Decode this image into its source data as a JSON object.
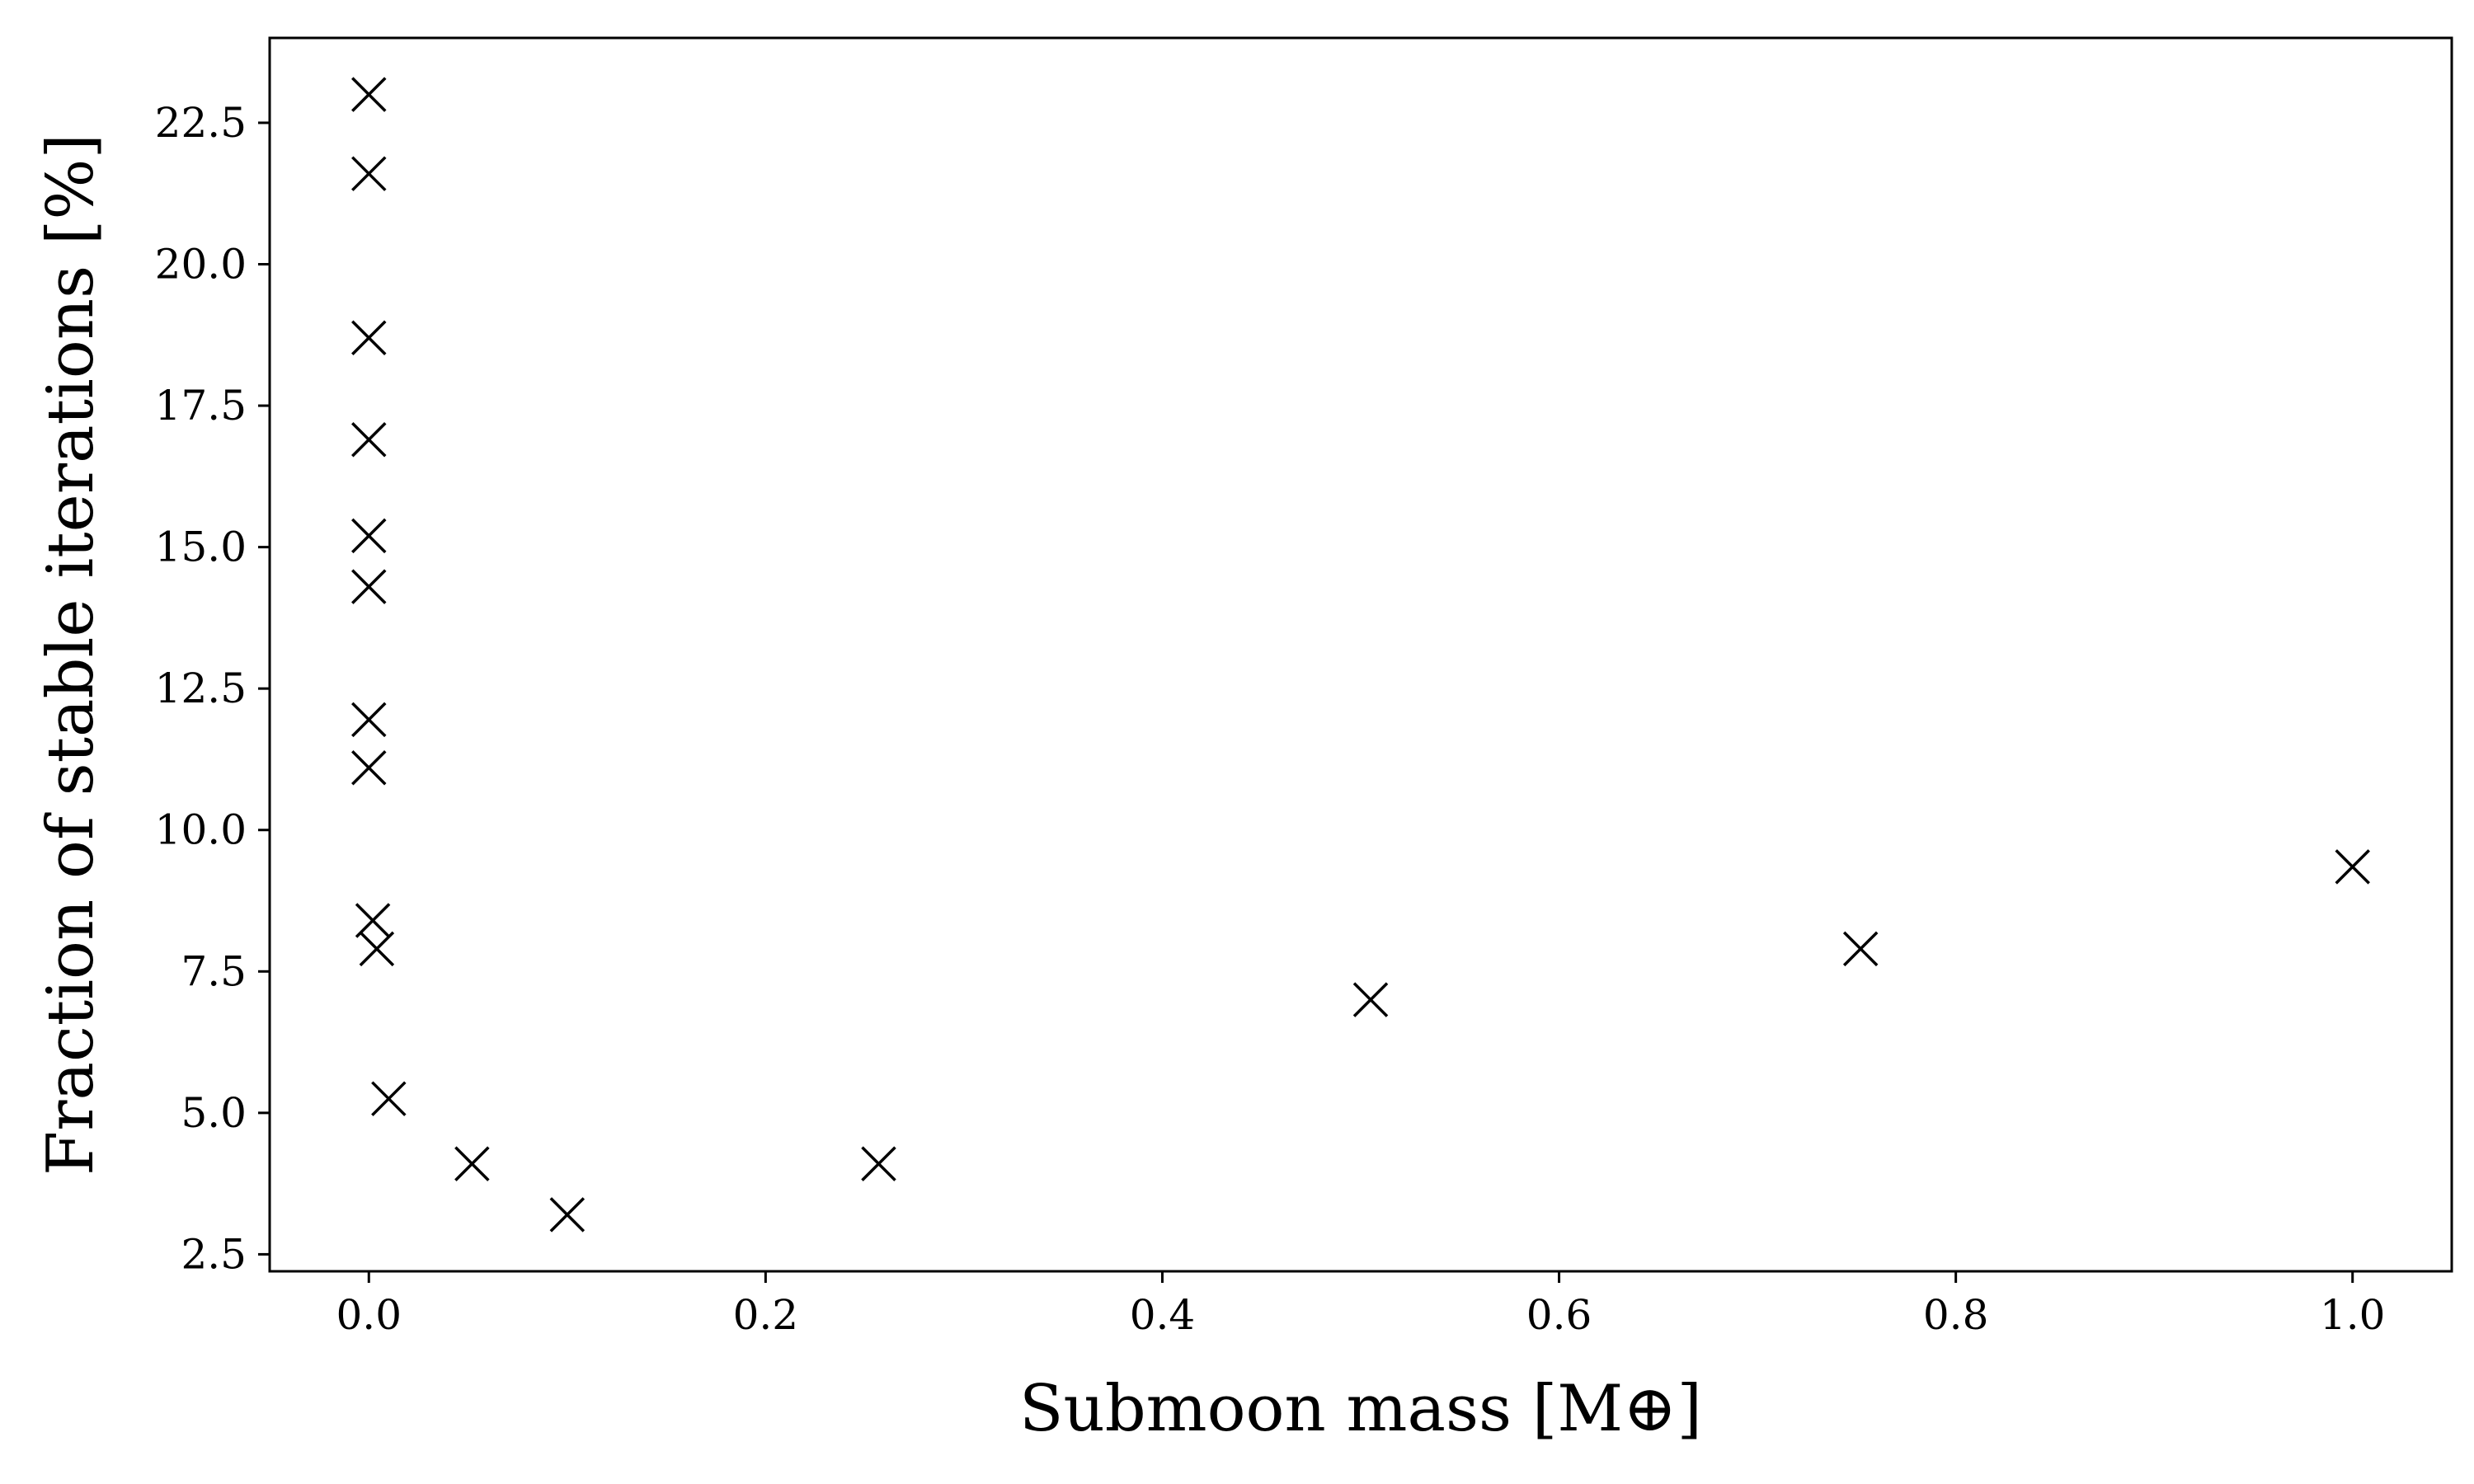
{
  "chart_data": {
    "type": "scatter",
    "title": "",
    "xlabel": "Submoon mass [M⊕]",
    "ylabel": "Fraction of stable iterations [%]",
    "xlim": [
      -0.05,
      1.05
    ],
    "ylim": [
      2.2,
      24.0
    ],
    "x_ticks": [
      0.0,
      0.2,
      0.4,
      0.6,
      0.8,
      1.0
    ],
    "x_tick_labels": [
      "0.0",
      "0.2",
      "0.4",
      "0.6",
      "0.8",
      "1.0"
    ],
    "y_ticks": [
      2.5,
      5.0,
      7.5,
      10.0,
      12.5,
      15.0,
      17.5,
      20.0,
      22.5
    ],
    "y_tick_labels": [
      "2.5",
      "5.0",
      "7.5",
      "10.0",
      "12.5",
      "15.0",
      "17.5",
      "20.0",
      "22.5"
    ],
    "grid": false,
    "marker": "x",
    "marker_color": "#000000",
    "points": [
      {
        "x": 0.0,
        "y": 23.0
      },
      {
        "x": 0.0,
        "y": 21.6
      },
      {
        "x": 0.0,
        "y": 18.7
      },
      {
        "x": 0.0,
        "y": 16.9
      },
      {
        "x": 0.0,
        "y": 15.2
      },
      {
        "x": 0.0,
        "y": 14.3
      },
      {
        "x": 0.0,
        "y": 11.95
      },
      {
        "x": 0.0,
        "y": 11.1
      },
      {
        "x": 0.002,
        "y": 8.4
      },
      {
        "x": 0.004,
        "y": 7.9
      },
      {
        "x": 0.01,
        "y": 5.25
      },
      {
        "x": 0.052,
        "y": 4.1
      },
      {
        "x": 0.1,
        "y": 3.2
      },
      {
        "x": 0.257,
        "y": 4.1
      },
      {
        "x": 0.505,
        "y": 7.0
      },
      {
        "x": 0.752,
        "y": 7.9
      },
      {
        "x": 1.0,
        "y": 9.35
      }
    ]
  }
}
